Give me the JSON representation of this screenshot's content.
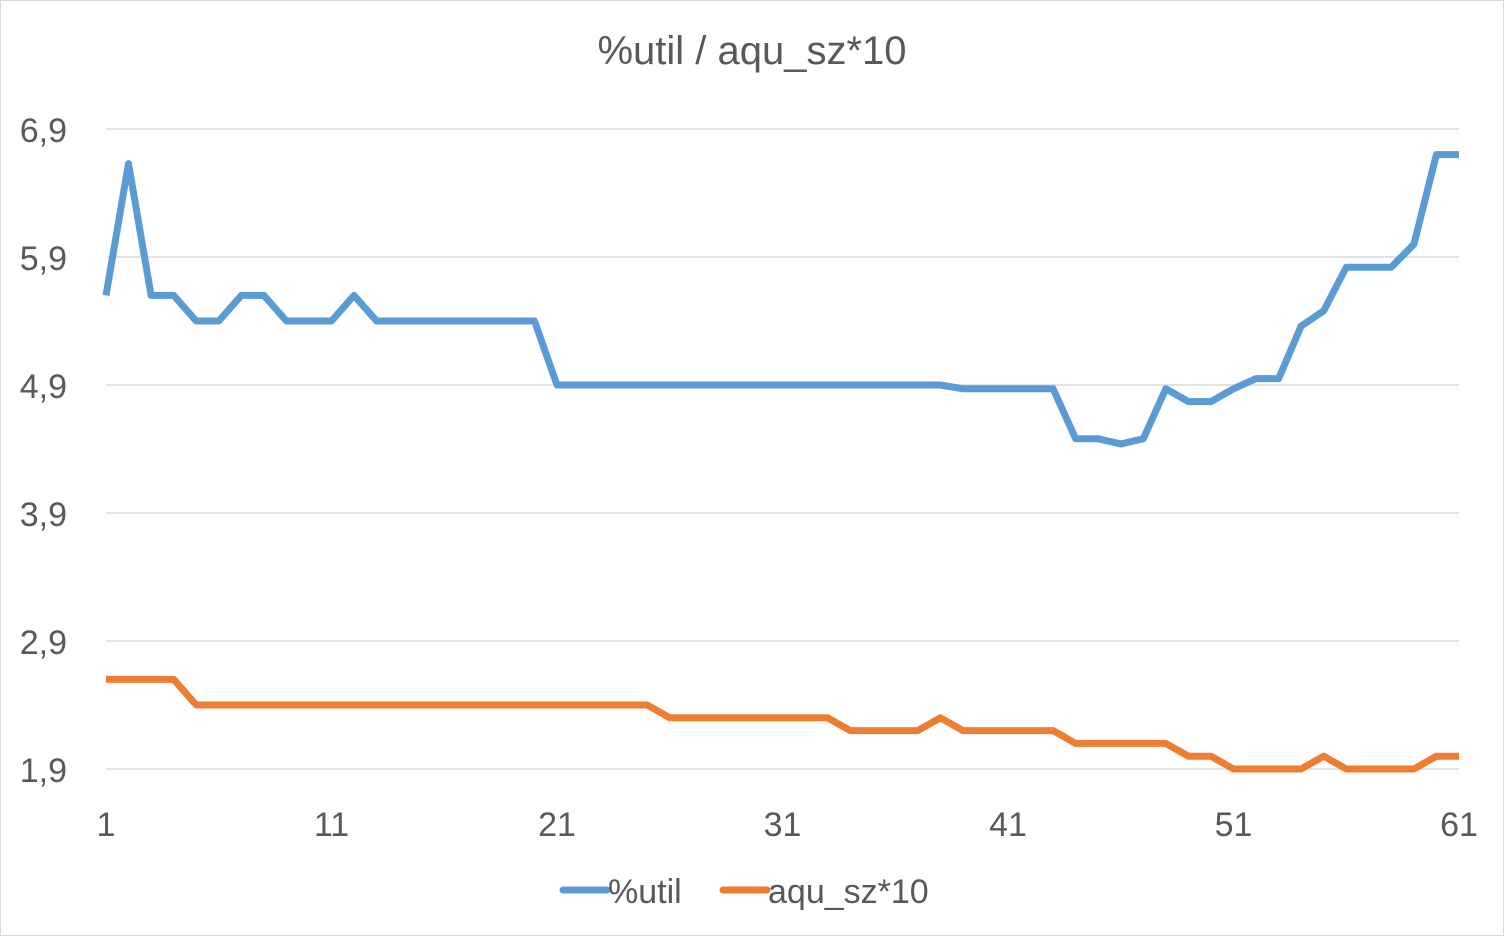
{
  "chart_data": {
    "type": "line",
    "title": "%util / aqu_sz*10",
    "xlabel": "",
    "ylabel": "",
    "x": [
      1,
      2,
      3,
      4,
      5,
      6,
      7,
      8,
      9,
      10,
      11,
      12,
      13,
      14,
      15,
      16,
      17,
      18,
      19,
      20,
      21,
      22,
      23,
      24,
      25,
      26,
      27,
      28,
      29,
      30,
      31,
      32,
      33,
      34,
      35,
      36,
      37,
      38,
      39,
      40,
      41,
      42,
      43,
      44,
      45,
      46,
      47,
      48,
      49,
      50,
      51,
      52,
      53,
      54,
      55,
      56,
      57,
      58,
      59,
      60,
      61
    ],
    "x_tick_labels": [
      "1",
      "11",
      "21",
      "31",
      "41",
      "51",
      "61"
    ],
    "x_tick_values": [
      1,
      11,
      21,
      31,
      41,
      51,
      61
    ],
    "y_tick_labels": [
      "1,9",
      "2,9",
      "3,9",
      "4,9",
      "5,9",
      "6,9"
    ],
    "y_tick_values": [
      1.9,
      2.9,
      3.9,
      4.9,
      5.9,
      6.9
    ],
    "ylim": [
      1.9,
      6.9
    ],
    "xlim": [
      1,
      61
    ],
    "grid": "horizontal",
    "legend": "bottom",
    "series": [
      {
        "name": "%util",
        "color": "#5b9bd5",
        "values": [
          5.6,
          6.63,
          5.6,
          5.6,
          5.4,
          5.4,
          5.6,
          5.6,
          5.4,
          5.4,
          5.4,
          5.6,
          5.4,
          5.4,
          5.4,
          5.4,
          5.4,
          5.4,
          5.4,
          5.4,
          4.9,
          4.9,
          4.9,
          4.9,
          4.9,
          4.9,
          4.9,
          4.9,
          4.9,
          4.9,
          4.9,
          4.9,
          4.9,
          4.9,
          4.9,
          4.9,
          4.9,
          4.9,
          4.87,
          4.87,
          4.87,
          4.87,
          4.87,
          4.48,
          4.48,
          4.44,
          4.48,
          4.87,
          4.77,
          4.77,
          4.87,
          4.95,
          4.95,
          5.36,
          5.48,
          5.82,
          5.82,
          5.82,
          6.0,
          6.7,
          6.7
        ]
      },
      {
        "name": "aqu_sz*10",
        "color": "#ed7d31",
        "values": [
          2.6,
          2.6,
          2.6,
          2.6,
          2.4,
          2.4,
          2.4,
          2.4,
          2.4,
          2.4,
          2.4,
          2.4,
          2.4,
          2.4,
          2.4,
          2.4,
          2.4,
          2.4,
          2.4,
          2.4,
          2.4,
          2.4,
          2.4,
          2.4,
          2.4,
          2.3,
          2.3,
          2.3,
          2.3,
          2.3,
          2.3,
          2.3,
          2.3,
          2.2,
          2.2,
          2.2,
          2.2,
          2.3,
          2.2,
          2.2,
          2.2,
          2.2,
          2.2,
          2.1,
          2.1,
          2.1,
          2.1,
          2.1,
          2.0,
          2.0,
          1.9,
          1.9,
          1.9,
          1.9,
          2.0,
          1.9,
          1.9,
          1.9,
          1.9,
          2.0,
          2.0
        ]
      }
    ]
  }
}
